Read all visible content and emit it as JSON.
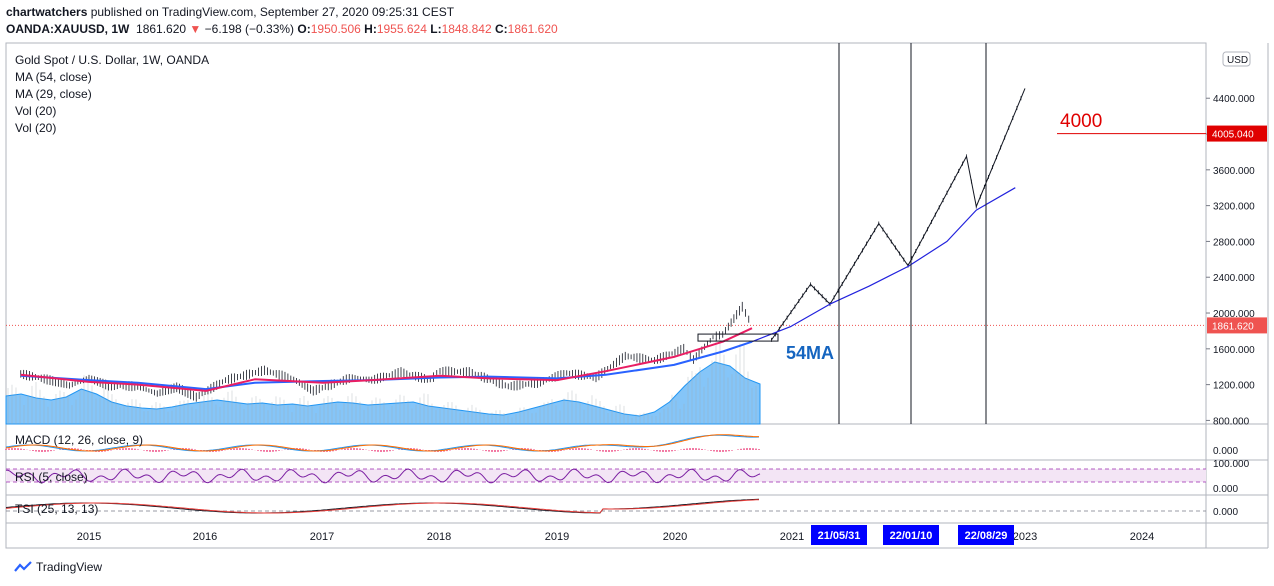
{
  "header": {
    "publisher_line_user": "chartwatchers",
    "publisher_line_rest": " published on TradingView.com, September 27, 2020 09:25:31 CEST",
    "symbol": "OANDA:XAUUSD, 1W",
    "last": "1861.620",
    "change": "−6.198 (−0.33%)",
    "o_label": "O:",
    "o": "1950.506",
    "h_label": "H:",
    "h": "1955.624",
    "l_label": "L:",
    "l": "1848.842",
    "c_label": "C:",
    "c": "1861.620"
  },
  "main_legend": {
    "title": "Gold Spot / U.S. Dollar, 1W, OANDA",
    "items": [
      "MA (54, close)",
      "MA (29, close)",
      "Vol (20)",
      "Vol (20)"
    ]
  },
  "currency_badge": "USD",
  "annotations": {
    "target_label": "4000",
    "ma_label": "54MA",
    "price_badge": "1861.620",
    "target_badge": "4005.040",
    "date_markers": [
      "21/05/31",
      "22/01/10",
      "22/08/29"
    ]
  },
  "indicators": {
    "macd": "MACD (12, 26, close, 9)",
    "rsi": "RSI (5, close)",
    "tsi": "TSI (25, 13, 13)"
  },
  "footer": {
    "brand": "TradingView"
  },
  "colors": {
    "ma54": "#2962ff",
    "ma29": "#e91e63",
    "volume": "#2196f3",
    "annotation_red": "#e00000",
    "marker_box": "#0000ff",
    "price_badge": "#ef5350",
    "target_badge": "#e00000"
  },
  "chart_data": {
    "type": "line",
    "title": "Gold Spot / U.S. Dollar, 1W, OANDA",
    "y_axis_ticks": [
      "800.000",
      "1200.000",
      "1600.000",
      "2000.000",
      "2400.000",
      "2800.000",
      "3200.000",
      "3600.000",
      "4000.000",
      "4400.000"
    ],
    "ylim": [
      750,
      4850
    ],
    "x_axis_ticks": [
      "2015",
      "2016",
      "2017",
      "2018",
      "2019",
      "2020",
      "2021",
      "2023",
      "2024"
    ],
    "grid": false,
    "series": [
      {
        "name": "XAUUSD",
        "points": [
          [
            "2014-06",
            1320
          ],
          [
            "2014-09",
            1250
          ],
          [
            "2014-11",
            1190
          ],
          [
            "2015-01",
            1270
          ],
          [
            "2015-03",
            1190
          ],
          [
            "2015-06",
            1180
          ],
          [
            "2015-08",
            1100
          ],
          [
            "2015-10",
            1170
          ],
          [
            "2015-12",
            1060
          ],
          [
            "2016-03",
            1250
          ],
          [
            "2016-07",
            1360
          ],
          [
            "2016-10",
            1260
          ],
          [
            "2016-12",
            1130
          ],
          [
            "2017-04",
            1280
          ],
          [
            "2017-06",
            1250
          ],
          [
            "2017-09",
            1340
          ],
          [
            "2017-12",
            1250
          ],
          [
            "2018-01",
            1350
          ],
          [
            "2018-04",
            1340
          ],
          [
            "2018-08",
            1180
          ],
          [
            "2018-11",
            1220
          ],
          [
            "2019-02",
            1330
          ],
          [
            "2019-05",
            1280
          ],
          [
            "2019-08",
            1520
          ],
          [
            "2019-11",
            1470
          ],
          [
            "2020-02",
            1600
          ],
          [
            "2020-03",
            1480
          ],
          [
            "2020-05",
            1730
          ],
          [
            "2020-06",
            1760
          ],
          [
            "2020-08",
            2070
          ],
          [
            "2020-09",
            1861.62
          ]
        ]
      },
      {
        "name": "MA (54, close)",
        "points": [
          [
            "2014-06",
            1300
          ],
          [
            "2015-01",
            1250
          ],
          [
            "2015-06",
            1220
          ],
          [
            "2016-01",
            1150
          ],
          [
            "2016-06",
            1220
          ],
          [
            "2017-01",
            1240
          ],
          [
            "2017-06",
            1250
          ],
          [
            "2018-01",
            1280
          ],
          [
            "2018-06",
            1290
          ],
          [
            "2019-01",
            1270
          ],
          [
            "2019-06",
            1310
          ],
          [
            "2020-01",
            1420
          ],
          [
            "2020-06",
            1570
          ],
          [
            "2020-09",
            1680
          ]
        ]
      },
      {
        "name": "MA (29, close)",
        "points": [
          [
            "2014-06",
            1310
          ],
          [
            "2015-01",
            1230
          ],
          [
            "2015-06",
            1200
          ],
          [
            "2016-01",
            1130
          ],
          [
            "2016-06",
            1260
          ],
          [
            "2017-01",
            1220
          ],
          [
            "2017-06",
            1250
          ],
          [
            "2018-01",
            1300
          ],
          [
            "2018-06",
            1270
          ],
          [
            "2019-01",
            1250
          ],
          [
            "2019-06",
            1350
          ],
          [
            "2020-01",
            1510
          ],
          [
            "2020-06",
            1680
          ],
          [
            "2020-09",
            1830
          ]
        ]
      }
    ],
    "projection": {
      "path": [
        [
          "2020-11",
          1700
        ],
        [
          "2021-03",
          2320
        ],
        [
          "2021-05",
          2100
        ],
        [
          "2021-10",
          3000
        ],
        [
          "2022-01",
          2530
        ],
        [
          "2022-07",
          3750
        ],
        [
          "2022-08",
          3190
        ],
        [
          "2023-01",
          4510
        ]
      ],
      "curve_54ma": [
        [
          "2020-09",
          1680
        ],
        [
          "2021-01",
          1850
        ],
        [
          "2021-05",
          2100
        ],
        [
          "2021-09",
          2300
        ],
        [
          "2022-01",
          2520
        ],
        [
          "2022-05",
          2800
        ],
        [
          "2022-08",
          3150
        ],
        [
          "2022-12",
          3400
        ]
      ],
      "target_price": 4005.04,
      "support_level": 1720
    }
  }
}
